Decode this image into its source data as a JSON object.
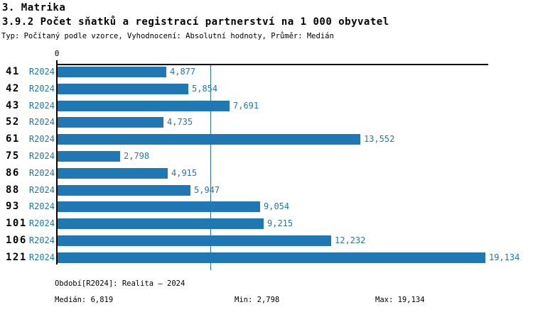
{
  "header": {
    "section_title": "3. Matrika",
    "report_title": "3.9.2 Počet sňatků a registrací partnerství na 1 000 obyvatel",
    "subtitle": "Typ: Počítaný podle vzorce, Vyhodnocení: Absolutní hodnoty, Průměr: Medián"
  },
  "chart_data": {
    "type": "bar",
    "orientation": "horizontal",
    "title": "3.9.2 Počet sňatků a registrací partnerství na 1 000 obyvatel",
    "series_label": "R2024",
    "categories": [
      "41",
      "42",
      "43",
      "52",
      "61",
      "75",
      "86",
      "88",
      "93",
      "101",
      "106",
      "121"
    ],
    "values": [
      4877,
      5854,
      7691,
      4735,
      13552,
      2798,
      4915,
      5947,
      9054,
      9215,
      12232,
      19134
    ],
    "value_labels": [
      "4,877",
      "5,854",
      "7,691",
      "4,735",
      "13,552",
      "2,798",
      "4,915",
      "5,947",
      "9,054",
      "9,215",
      "12,232",
      "19,134"
    ],
    "axis_zero_label": "0",
    "xlim": [
      0,
      19134
    ],
    "median_line_value": 6819,
    "grid": "off",
    "legend": "none",
    "bar_color": "#1f77b4",
    "median_line_color": "#1f77b4",
    "label_color": "#1f77b4"
  },
  "footer": {
    "period_label": "Období[R2024]: Realita – 2024",
    "median_label": "Medián: 6,819",
    "min_label": "Min: 2,798",
    "max_label": "Max: 19,134"
  }
}
